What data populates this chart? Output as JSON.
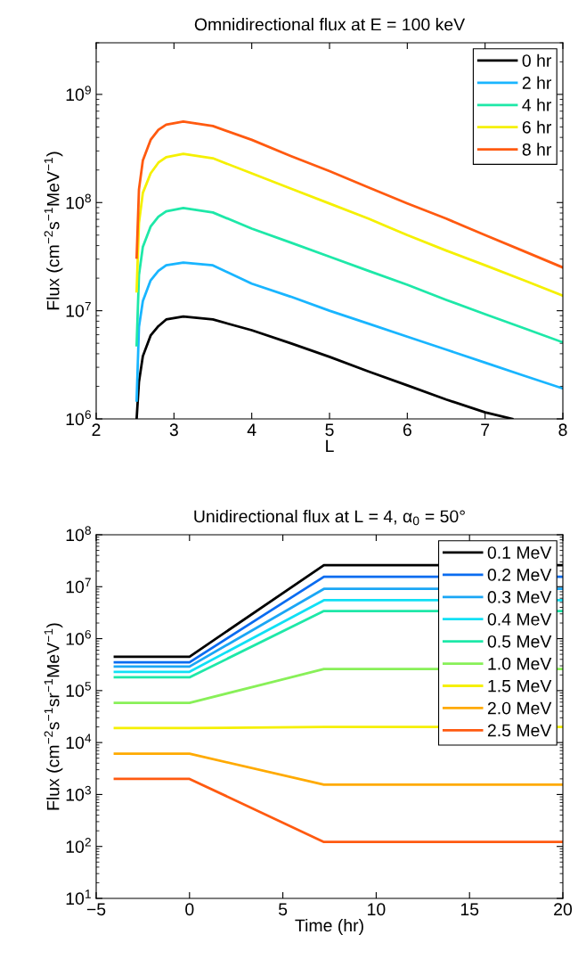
{
  "chart_data": [
    {
      "type": "line",
      "title": "Omnidirectional flux at E = 100 keV",
      "xlabel": "L",
      "ylabel": "Flux (cm$^{−2}$s$^{−1}$MeV$^{−1}$)",
      "log": "y",
      "legend": "top right",
      "grid": false,
      "xlim": [
        2,
        8
      ],
      "xticks": [
        2,
        3,
        4,
        5,
        6,
        7,
        8
      ],
      "ylim": [
        1000000.0,
        3000000000.0
      ],
      "yticks": [
        {
          "value": 1000000.0,
          "label": "10$^{6}$"
        },
        {
          "value": 10000000.0,
          "label": "10$^{7}$"
        },
        {
          "value": 100000000.0,
          "label": "10$^{8}$"
        },
        {
          "value": 1000000000.0,
          "label": "10$^{9}$"
        }
      ],
      "series": [
        {
          "name": "0 hr",
          "color": "#000000",
          "x": [
            2.52,
            2.55,
            2.6,
            2.7,
            2.8,
            2.9,
            3.12,
            3.5,
            4,
            4.5,
            5,
            5.5,
            6,
            6.5,
            7,
            7.35
          ],
          "values": [
            1000000.0,
            2200000.0,
            3800000.0,
            5900000.0,
            7200000.0,
            8300000.0,
            8850000.0,
            8300000.0,
            6600000.0,
            5000000.0,
            3750000.0,
            2750000.0,
            2040000.0,
            1510000.0,
            1150000.0,
            1000000.0
          ]
        },
        {
          "name": "2 hr",
          "color": "#19b5ff",
          "x": [
            2.52,
            2.55,
            2.6,
            2.7,
            2.8,
            2.9,
            3.12,
            3.5,
            4,
            4.5,
            5,
            5.5,
            6,
            6.5,
            7,
            7.5,
            8
          ],
          "values": [
            1480000.0,
            7100000.0,
            12300000.0,
            19100000.0,
            23400000.0,
            26300000.0,
            27900000.0,
            26300000.0,
            17800000.0,
            13500000.0,
            10000000.0,
            7600000.0,
            5750000.0,
            4370000.0,
            3310000.0,
            2510000.0,
            1910000.0
          ]
        },
        {
          "name": "4 hr",
          "color": "#1ee8a8",
          "x": [
            2.52,
            2.55,
            2.6,
            2.7,
            2.8,
            2.9,
            3.12,
            3.5,
            4,
            4.5,
            5,
            5.5,
            6,
            6.5,
            7,
            7.5,
            8
          ],
          "values": [
            4800000.0,
            21400000.0,
            39000000.0,
            60000000.0,
            74000000.0,
            83000000.0,
            89000000.0,
            81000000.0,
            57500000.0,
            42700000.0,
            31600000.0,
            23400000.0,
            17400000.0,
            12600000.0,
            9300000.0,
            6900000.0,
            5100000.0
          ]
        },
        {
          "name": "6 hr",
          "color": "#f5f000",
          "x": [
            2.52,
            2.55,
            2.6,
            2.7,
            2.8,
            2.9,
            3.12,
            3.5,
            4,
            4.5,
            5,
            5.5,
            6,
            6.5,
            7,
            7.5,
            8
          ],
          "values": [
            15100000.0,
            65000000.0,
            123000000.0,
            186000000.0,
            234000000.0,
            263000000.0,
            282000000.0,
            257000000.0,
            186000000.0,
            135000000.0,
            98000000.0,
            71000000.0,
            50000000.0,
            36000000.0,
            26300000.0,
            19100000.0,
            13800000.0
          ]
        },
        {
          "name": "8 hr",
          "color": "#ff5a10",
          "x": [
            2.52,
            2.55,
            2.6,
            2.7,
            2.8,
            2.9,
            3.12,
            3.5,
            4,
            4.5,
            5,
            5.5,
            6,
            6.5,
            7,
            7.5,
            8
          ],
          "values": [
            31000000.0,
            132000000.0,
            245000000.0,
            380000000.0,
            470000000.0,
            525000000.0,
            560000000.0,
            510000000.0,
            380000000.0,
            270000000.0,
            195000000.0,
            138000000.0,
            98000000.0,
            71000000.0,
            50000000.0,
            35500000.0,
            25100000.0
          ]
        }
      ]
    },
    {
      "type": "line",
      "title": "Unidirectional flux at L = 4, α$_{0}$ = 50°",
      "xlabel": "Time (hr)",
      "ylabel": "Flux (cm$^{−2}$s$^{−1}$sr$^{−1}$MeV$^{−1}$)",
      "log": "y",
      "legend": "top right",
      "grid": false,
      "xlim": [
        -5,
        20
      ],
      "xticks": [
        {
          "value": -5,
          "label": "−5"
        },
        0,
        5,
        10,
        15,
        20
      ],
      "ylim": [
        10,
        100000000.0
      ],
      "yticks": [
        {
          "value": 10,
          "label": "10$^{1}$"
        },
        {
          "value": 100,
          "label": "10$^{2}$"
        },
        {
          "value": 1000.0,
          "label": "10$^{3}$"
        },
        {
          "value": 10000.0,
          "label": "10$^{4}$"
        },
        {
          "value": 100000.0,
          "label": "10$^{5}$"
        },
        {
          "value": 1000000.0,
          "label": "10$^{6}$"
        },
        {
          "value": 10000000.0,
          "label": "10$^{7}$"
        },
        {
          "value": 100000000.0,
          "label": "10$^{8}$"
        }
      ],
      "x": [
        -4,
        0,
        7.2,
        20
      ],
      "series": [
        {
          "name": "0.1 MeV",
          "color": "#000000",
          "values": [
            450000.0,
            450000.0,
            26000000.0,
            26000000.0
          ]
        },
        {
          "name": "0.2 MeV",
          "color": "#0a6cf0",
          "values": [
            350000.0,
            350000.0,
            15500000.0,
            15500000.0
          ]
        },
        {
          "name": "0.3 MeV",
          "color": "#1aa6f5",
          "values": [
            290000.0,
            290000.0,
            9100000.0,
            9100000.0
          ]
        },
        {
          "name": "0.4 MeV",
          "color": "#10e0f5",
          "values": [
            230000.0,
            230000.0,
            5500000.0,
            5500000.0
          ]
        },
        {
          "name": "0.5 MeV",
          "color": "#1ee8a8",
          "values": [
            180000.0,
            180000.0,
            3400000.0,
            3400000.0
          ]
        },
        {
          "name": "1.0 MeV",
          "color": "#88f058",
          "values": [
            58000.0,
            58000.0,
            260000.0,
            260000.0
          ]
        },
        {
          "name": "1.5 MeV",
          "color": "#f5f000",
          "values": [
            19000.0,
            19000.0,
            20000.0,
            20000.0
          ]
        },
        {
          "name": "2.0 MeV",
          "color": "#ffaa00",
          "values": [
            6100.0,
            6100.0,
            1550.0,
            1550.0
          ]
        },
        {
          "name": "2.5 MeV",
          "color": "#ff5a10",
          "values": [
            2000.0,
            2000.0,
            122.0,
            122.0
          ]
        }
      ]
    }
  ]
}
